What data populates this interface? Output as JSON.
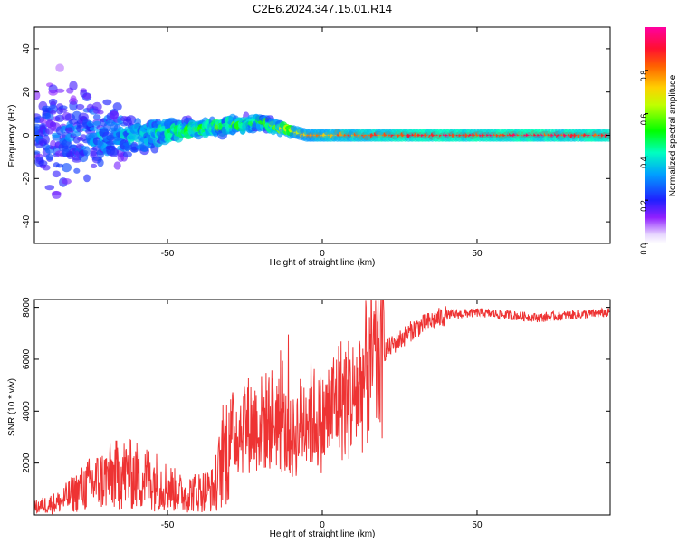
{
  "title": "C2E6.2024.347.15.01.R14",
  "chart_data": [
    {
      "type": "heatmap",
      "xlabel": "Height of straight line (km)",
      "ylabel": "Frequency (Hz)",
      "xlim": [
        -93,
        93
      ],
      "ylim": [
        -50,
        50
      ],
      "x_ticks": [
        -50,
        0,
        50
      ],
      "y_ticks": [
        -40,
        -20,
        0,
        20,
        40
      ],
      "colorbar": {
        "label": "Normalized spectral amplitude",
        "range": [
          0,
          1
        ],
        "ticks": [
          "0.0",
          "0.2",
          "0.4",
          "0.6",
          "0.8"
        ],
        "colors": [
          "#ffffff",
          "#8000ff",
          "#0000ff",
          "#00ffff",
          "#00ff00",
          "#ffff00",
          "#ff8000",
          "#ff0000",
          "#ff00ff"
        ]
      },
      "description_points": [
        {
          "x": -90,
          "f_center": 0,
          "spread": 40,
          "amp": 0.25
        },
        {
          "x": -60,
          "f_center": 0,
          "spread": 10,
          "amp": 0.4
        },
        {
          "x": -40,
          "f_center": 3,
          "spread": 5,
          "amp": 0.55
        },
        {
          "x": -20,
          "f_center": 6,
          "spread": 4,
          "amp": 0.5
        },
        {
          "x": -5,
          "f_center": 0,
          "spread": 2,
          "amp": 0.8
        },
        {
          "x": 30,
          "f_center": 0,
          "spread": 1,
          "amp": 0.95
        },
        {
          "x": 93,
          "f_center": 0,
          "spread": 1,
          "amp": 0.95
        }
      ]
    },
    {
      "type": "line",
      "xlabel": "Height of straight line (km)",
      "ylabel": "SNR (10 * v/v)",
      "xlim": [
        -93,
        93
      ],
      "ylim": [
        0,
        8300
      ],
      "x_ticks": [
        -50,
        0,
        50
      ],
      "y_ticks": [
        2000,
        4000,
        6000,
        8000
      ],
      "color": "#ee3333",
      "x": [
        -93,
        -85,
        -75,
        -65,
        -55,
        -45,
        -35,
        -30,
        -25,
        -20,
        -15,
        -10,
        -5,
        0,
        5,
        10,
        15,
        20,
        30,
        40,
        50,
        60,
        70,
        80,
        93
      ],
      "y": [
        300,
        500,
        1200,
        1600,
        1400,
        800,
        1000,
        3000,
        3500,
        3500,
        3800,
        2800,
        4000,
        3500,
        4500,
        4500,
        5600,
        6300,
        7200,
        7700,
        7800,
        7700,
        7600,
        7700,
        7800
      ]
    }
  ]
}
